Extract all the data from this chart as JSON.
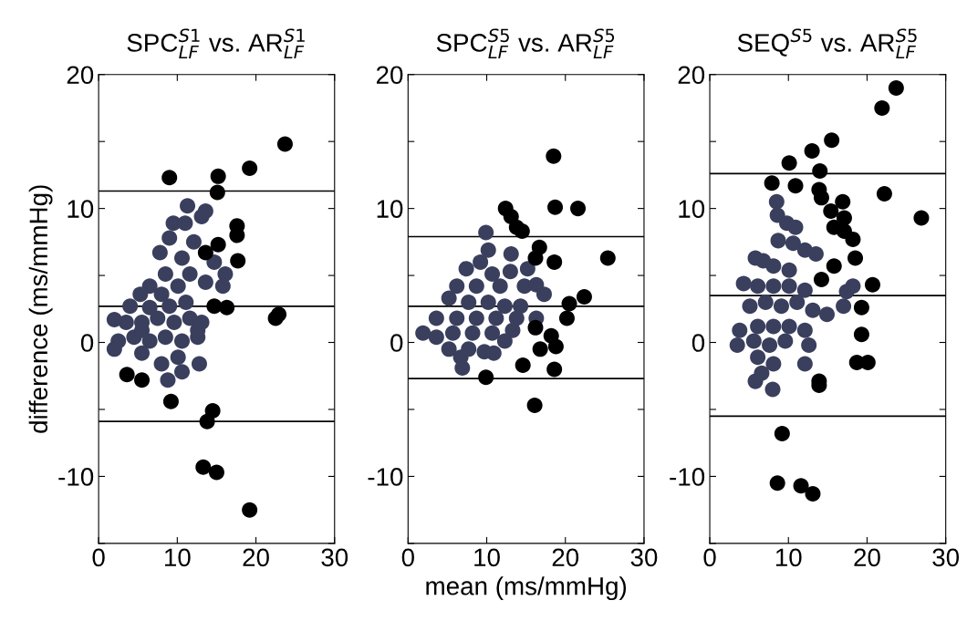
{
  "chart_data": [
    {
      "type": "scatter",
      "title": "SPC$^{S1}$$_{LF}$ vs. AR$^{S1}$$_{LF}$",
      "ylabel": "difference (ms/mmHg)",
      "xlim": [
        0,
        30
      ],
      "ylim": [
        -15,
        20
      ],
      "xticks": [
        0,
        10,
        20,
        30
      ],
      "yticks": [
        {
          "value": -15,
          "label": null
        },
        -10,
        {
          "value": -5,
          "label": null
        },
        0,
        {
          "value": 5,
          "label": null
        },
        10,
        {
          "value": 15,
          "label": null
        },
        20
      ],
      "marker": "circle",
      "ref_lines": [
        {
          "axis": "y",
          "value": 11.3,
          "color": "#000000"
        },
        {
          "axis": "y",
          "value": 2.7,
          "color": "#000000"
        },
        {
          "axis": "y",
          "value": -5.9,
          "color": "#000000"
        }
      ],
      "series": [
        {
          "color": "#3b3f5e",
          "x": [
            11.3,
            9.5,
            11.0,
            13.1,
            9.0,
            12.1,
            7.8,
            10.6,
            14.7,
            16.1,
            15.8,
            13.6,
            11.6,
            8.5,
            6.5,
            5.3,
            8.0,
            10.1,
            4.0,
            6.5,
            9.0,
            11.1,
            2.0,
            3.5,
            5.5,
            7.5,
            9.6,
            11.6,
            13.1,
            2.5,
            4.5,
            6.5,
            8.5,
            10.6,
            12.6,
            2.0,
            5.5,
            8.0,
            10.1,
            12.8,
            10.6,
            8.8,
            12.6,
            5.5,
            13.6
          ],
          "values": [
            10.2,
            8.9,
            8.9,
            9.4,
            7.8,
            7.5,
            6.7,
            6.3,
            6.0,
            5.1,
            4.2,
            4.5,
            5.1,
            5.1,
            4.2,
            3.6,
            3.6,
            4.2,
            2.7,
            2.6,
            2.7,
            3.0,
            1.7,
            1.5,
            1.5,
            1.8,
            1.5,
            1.8,
            1.5,
            0.1,
            0.4,
            0.1,
            0.4,
            0.1,
            0.4,
            -0.5,
            -0.8,
            -1.6,
            -1.1,
            -1.6,
            -2.2,
            -2.8,
            0.9,
            0.9,
            9.8
          ]
        },
        {
          "color": "#000000",
          "x": [
            23.7,
            19.2,
            9.0,
            15.2,
            15.1,
            17.6,
            17.6,
            15.2,
            17.7,
            14.7,
            16.3,
            22.5,
            22.9,
            3.6,
            5.5,
            9.2,
            14.5,
            13.8,
            13.3,
            15.0,
            19.2,
            13.6
          ],
          "values": [
            14.8,
            13.0,
            12.3,
            12.4,
            11.2,
            8.7,
            8.0,
            7.3,
            6.1,
            2.7,
            2.6,
            1.8,
            2.1,
            -2.4,
            -2.8,
            -4.4,
            -5.1,
            -5.9,
            -9.3,
            -9.7,
            -12.5,
            6.7
          ]
        }
      ]
    },
    {
      "type": "scatter",
      "title": "SPC$^{S5}$$_{LF}$ vs. AR$^{S5}$$_{LF}$",
      "xlabel": "mean (ms/mmHg)",
      "xlim": [
        0,
        30
      ],
      "ylim": [
        -15,
        20
      ],
      "xticks": [
        0,
        10,
        20,
        30
      ],
      "yticks": [
        {
          "value": -15,
          "label": null
        },
        -10,
        {
          "value": -5,
          "label": null
        },
        0,
        {
          "value": 5,
          "label": null
        },
        10,
        {
          "value": 15,
          "label": null
        },
        20
      ],
      "marker": "circle",
      "ref_lines": [
        {
          "axis": "y",
          "value": 7.9,
          "color": "#000000"
        },
        {
          "axis": "y",
          "value": 2.7,
          "color": "#000000"
        },
        {
          "axis": "y",
          "value": -2.7,
          "color": "#000000"
        }
      ],
      "series": [
        {
          "color": "#3b3f5e",
          "x": [
            9.9,
            10.2,
            9.2,
            7.4,
            10.7,
            6.2,
            8.7,
            11.7,
            5.2,
            7.7,
            10.2,
            12.3,
            14.8,
            16.3,
            17.3,
            14.3,
            3.6,
            6.2,
            8.7,
            11.2,
            13.8,
            1.9,
            3.6,
            5.7,
            8.2,
            10.7,
            13.3,
            16.3,
            5.2,
            7.7,
            9.7,
            10.9,
            6.9,
            6.7,
            12.3,
            13.1,
            13.0,
            15.2
          ],
          "values": [
            8.2,
            6.9,
            6.0,
            5.5,
            5.1,
            4.2,
            4.2,
            4.2,
            3.3,
            3.0,
            3.0,
            2.7,
            4.2,
            4.3,
            3.6,
            2.7,
            1.8,
            1.8,
            1.8,
            1.8,
            1.8,
            0.7,
            0.4,
            0.7,
            0.7,
            0.7,
            0.9,
            1.8,
            -0.5,
            -0.5,
            -0.7,
            -0.8,
            -1.9,
            -1.1,
            0.1,
            6.6,
            5.3,
            5.5
          ]
        },
        {
          "color": "#000000",
          "x": [
            18.5,
            18.7,
            21.6,
            12.4,
            13.1,
            13.8,
            14.5,
            16.7,
            16.2,
            18.6,
            25.4,
            22.4,
            20.5,
            20.2,
            16.2,
            18.2,
            18.8,
            16.8,
            14.6,
            18.6,
            9.9,
            16.1
          ],
          "values": [
            13.9,
            10.1,
            10.0,
            10.0,
            9.4,
            8.6,
            8.3,
            7.1,
            6.3,
            6.0,
            6.3,
            3.4,
            2.9,
            1.8,
            1.1,
            0.5,
            -0.3,
            -0.5,
            -1.7,
            -2.0,
            -2.6,
            -4.7
          ]
        }
      ]
    },
    {
      "type": "scatter",
      "title": "SEQ$^{S5}$ vs. AR$^{S5}$$_{LF}$",
      "xlim": [
        0,
        30
      ],
      "ylim": [
        -15,
        20
      ],
      "xticks": [
        0,
        10,
        20,
        30
      ],
      "yticks": [
        {
          "value": -15,
          "label": null
        },
        -10,
        {
          "value": -5,
          "label": null
        },
        0,
        {
          "value": 5,
          "label": null
        },
        10,
        {
          "value": 15,
          "label": null
        },
        20
      ],
      "marker": "circle",
      "ref_lines": [
        {
          "axis": "y",
          "value": 12.6,
          "color": "#000000"
        },
        {
          "axis": "y",
          "value": 3.5,
          "color": "#000000"
        },
        {
          "axis": "y",
          "value": -5.5,
          "color": "#000000"
        }
      ],
      "series": [
        {
          "color": "#3b3f5e",
          "x": [
            8.5,
            8.6,
            9.8,
            10.9,
            8.7,
            10.6,
            12.1,
            13.5,
            5.8,
            6.8,
            8.1,
            10.1,
            4.3,
            6.1,
            8.1,
            10.1,
            12.1,
            18.2,
            17.4,
            5.1,
            7.1,
            9.1,
            11.1,
            13.1,
            14.9,
            17.0,
            3.8,
            6.1,
            8.1,
            10.1,
            12.1,
            3.5,
            5.6,
            7.6,
            9.6,
            12.6,
            6.1,
            8.1,
            12.1,
            6.6,
            5.8,
            8.0
          ],
          "values": [
            10.5,
            9.5,
            8.9,
            8.6,
            7.6,
            7.4,
            6.9,
            6.6,
            6.3,
            6.1,
            5.7,
            5.4,
            4.4,
            4.2,
            4.2,
            4.2,
            3.9,
            4.2,
            3.8,
            2.7,
            3.0,
            2.7,
            3.0,
            2.4,
            2.1,
            2.7,
            0.9,
            1.2,
            1.2,
            1.2,
            0.9,
            -0.2,
            0.1,
            -0.2,
            0.1,
            -0.2,
            -1.1,
            -1.6,
            -1.6,
            -2.3,
            -2.9,
            -3.5
          ]
        },
        {
          "color": "#000000",
          "x": [
            23.7,
            21.9,
            15.5,
            13.0,
            10.1,
            14.0,
            7.9,
            10.9,
            22.2,
            13.9,
            14.2,
            16.9,
            15.4,
            17.1,
            26.9,
            15.8,
            17.1,
            18.2,
            18.5,
            15.8,
            14.2,
            20.7,
            19.3,
            19.3,
            18.7,
            20.1,
            13.9,
            13.9,
            9.2,
            8.6,
            11.6,
            13.1
          ],
          "values": [
            19.0,
            17.5,
            15.1,
            14.3,
            13.4,
            12.8,
            11.9,
            11.7,
            11.1,
            11.4,
            10.8,
            10.5,
            9.8,
            9.3,
            9.3,
            8.6,
            8.3,
            7.7,
            6.3,
            5.7,
            4.7,
            4.3,
            2.6,
            0.6,
            -1.5,
            -1.5,
            -2.9,
            -3.2,
            -6.8,
            -10.5,
            -10.7,
            -11.3
          ]
        }
      ]
    }
  ]
}
